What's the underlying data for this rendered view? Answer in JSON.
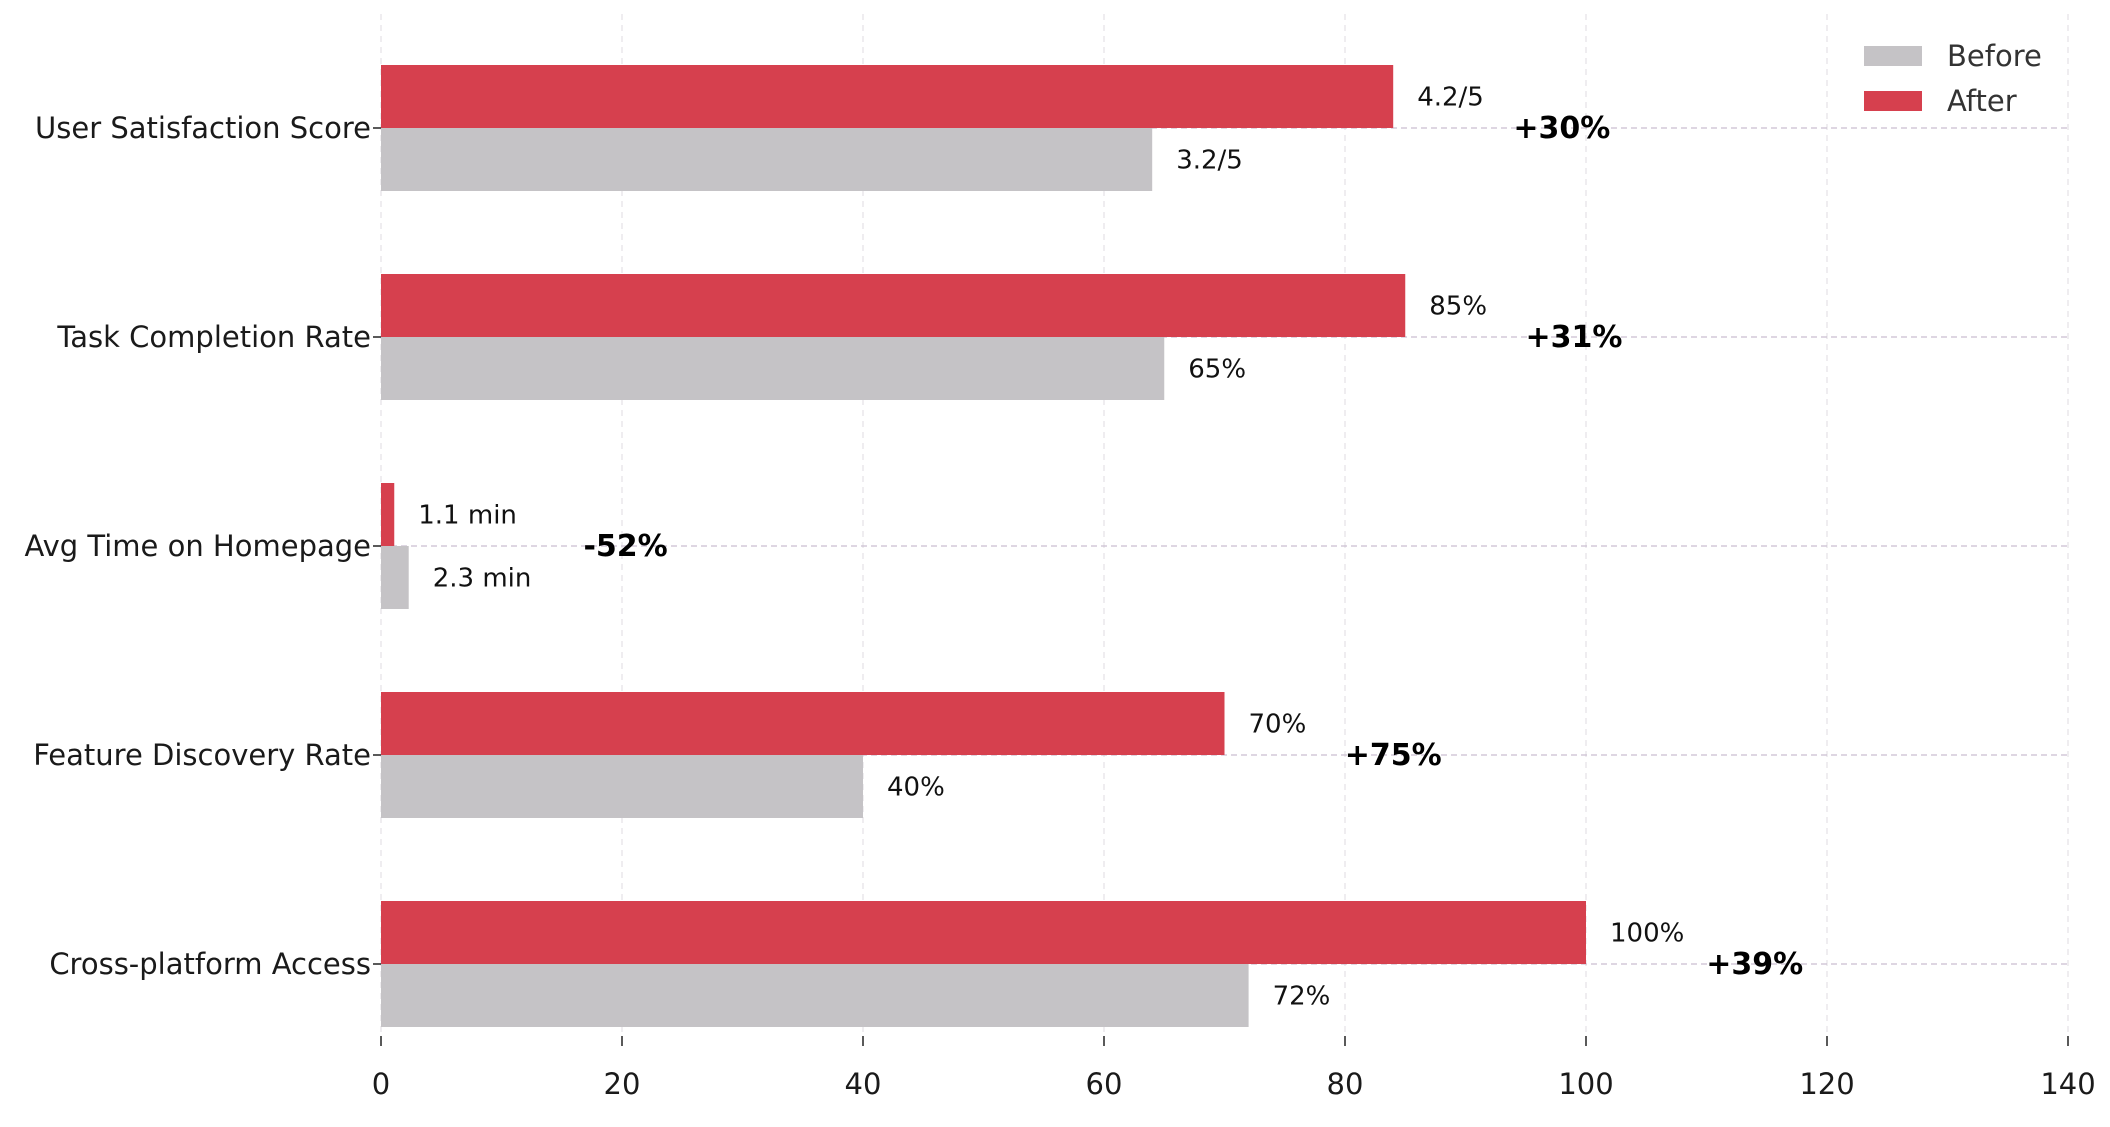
{
  "chart_data": {
    "type": "bar",
    "orientation": "horizontal",
    "categories": [
      "User Satisfaction Score",
      "Task Completion Rate",
      "Avg Time on Homepage",
      "Feature Discovery Rate",
      "Cross-platform Access"
    ],
    "series": [
      {
        "name": "After",
        "color": "#d6404e",
        "values": [
          84,
          85,
          1.1,
          70,
          100
        ],
        "labels": [
          "4.2/5",
          "85%",
          "1.1 min",
          "70%",
          "100%"
        ]
      },
      {
        "name": "Before",
        "color": "#c5c3c6",
        "values": [
          64,
          65,
          2.3,
          40,
          72
        ],
        "labels": [
          "3.2/5",
          "65%",
          "2.3 min",
          "40%",
          "72%"
        ]
      }
    ],
    "changes": [
      "+30%",
      "+31%",
      "-52%",
      "+75%",
      "+39%"
    ],
    "xlim": [
      0,
      140
    ],
    "xticks": [
      0,
      20,
      40,
      60,
      80,
      100,
      120,
      140
    ],
    "xtick_labels": [
      "0",
      "20",
      "40",
      "60",
      "80",
      "100",
      "120",
      "140"
    ],
    "title": "",
    "xlabel": "",
    "ylabel": "",
    "grid": "vertical dashed",
    "legend": {
      "position": "top-right",
      "entries": [
        {
          "name": "Before",
          "color": "#c5c3c6"
        },
        {
          "name": "After",
          "color": "#d6404e"
        }
      ]
    }
  }
}
